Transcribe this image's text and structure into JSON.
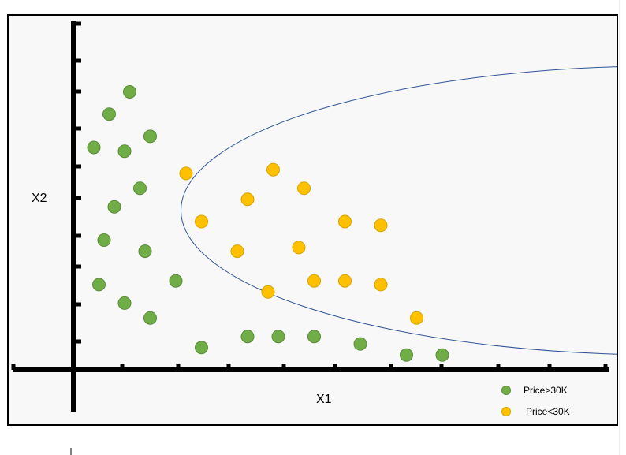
{
  "chart_data": {
    "type": "scatter",
    "title": "",
    "xlabel": "X1",
    "ylabel": "X2",
    "xlim": [
      0,
      10.5
    ],
    "ylim": [
      0,
      10.5
    ],
    "grid": false,
    "legend_position": "bottom-right",
    "series": [
      {
        "name": "Price>30K",
        "color": "#70ad47",
        "points": [
          [
            1.1,
            7.5
          ],
          [
            0.7,
            6.9
          ],
          [
            1.5,
            6.3
          ],
          [
            0.4,
            6.0
          ],
          [
            1.0,
            5.9
          ],
          [
            1.3,
            4.9
          ],
          [
            0.8,
            4.4
          ],
          [
            0.6,
            3.5
          ],
          [
            1.4,
            3.2
          ],
          [
            2.0,
            2.4
          ],
          [
            0.5,
            2.3
          ],
          [
            1.0,
            1.8
          ],
          [
            1.5,
            1.4
          ],
          [
            2.5,
            0.6
          ],
          [
            3.4,
            0.9
          ],
          [
            4.0,
            0.9
          ],
          [
            4.7,
            0.9
          ],
          [
            5.6,
            0.7
          ],
          [
            6.5,
            0.4
          ],
          [
            7.2,
            0.4
          ]
        ]
      },
      {
        "name": "Price<30K",
        "color": "#ffc000",
        "points": [
          [
            2.2,
            5.3
          ],
          [
            3.9,
            5.4
          ],
          [
            4.5,
            4.9
          ],
          [
            3.4,
            4.6
          ],
          [
            2.5,
            4.0
          ],
          [
            5.3,
            4.0
          ],
          [
            6.0,
            3.9
          ],
          [
            3.2,
            3.2
          ],
          [
            4.4,
            3.3
          ],
          [
            3.8,
            2.1
          ],
          [
            4.7,
            2.4
          ],
          [
            5.3,
            2.4
          ],
          [
            6.0,
            2.3
          ],
          [
            6.7,
            1.4
          ]
        ]
      }
    ],
    "annotations": [
      {
        "type": "ellipse",
        "color": "#2f5597",
        "center": [
          11.6,
          4.3
        ],
        "radii": [
          9.5,
          3.9
        ]
      }
    ]
  }
}
